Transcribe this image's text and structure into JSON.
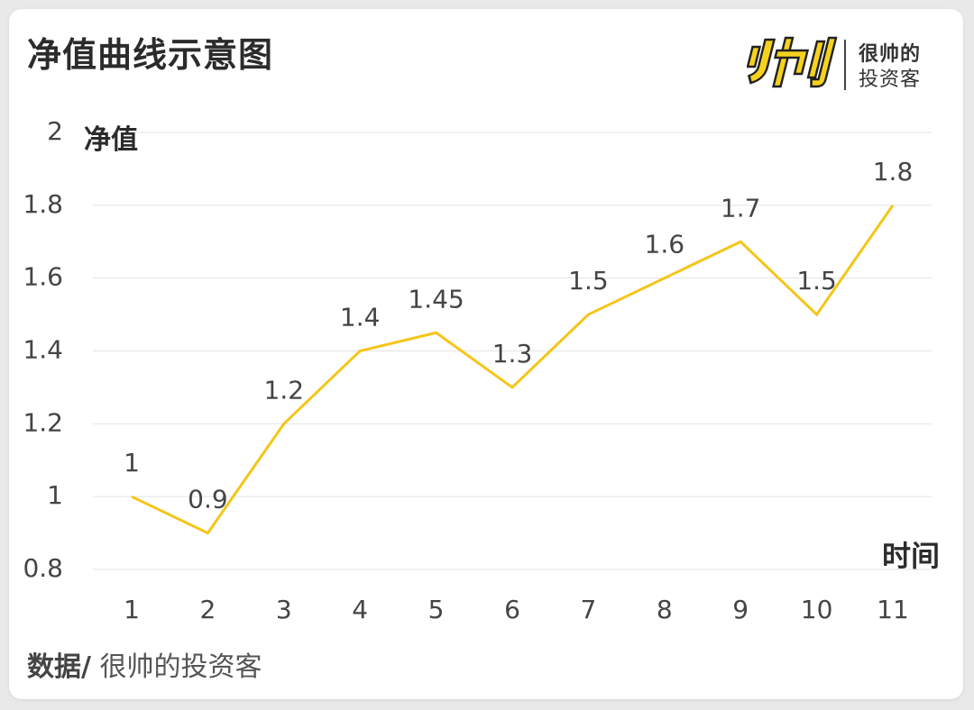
{
  "header": {
    "title": "净值曲线示意图"
  },
  "brand": {
    "line1": "很帅的",
    "line2": "投资客",
    "logo_icon": "shuai-logo-icon",
    "logo_color": "#f5d21e"
  },
  "footer": {
    "source_prefix": "数据/",
    "source_text": " 很帅的投资客"
  },
  "chart_data": {
    "type": "line",
    "title": "净值曲线示意图",
    "xlabel": "时间",
    "ylabel": "净值",
    "x": [
      1,
      2,
      3,
      4,
      5,
      6,
      7,
      8,
      9,
      10,
      11
    ],
    "series": [
      {
        "values": [
          1,
          0.9,
          1.2,
          1.4,
          1.45,
          1.3,
          1.5,
          1.6,
          1.7,
          1.5,
          1.8
        ],
        "color": "#f5c518"
      }
    ],
    "data_labels": [
      "1",
      "0.9",
      "1.2",
      "1.4",
      "1.45",
      "1.3",
      "1.5",
      "1.6",
      "1.7",
      "1.5",
      "1.8"
    ],
    "ylim": [
      0.8,
      2
    ],
    "yticks": [
      0.8,
      1,
      1.2,
      1.4,
      1.6,
      1.8,
      2
    ],
    "ytick_labels": [
      "0.8",
      "1",
      "1.2",
      "1.4",
      "1.6",
      "1.8",
      "2"
    ],
    "xtick_labels": [
      "1",
      "2",
      "3",
      "4",
      "5",
      "6",
      "7",
      "8",
      "9",
      "10",
      "11"
    ],
    "grid": true,
    "legend": "none"
  }
}
